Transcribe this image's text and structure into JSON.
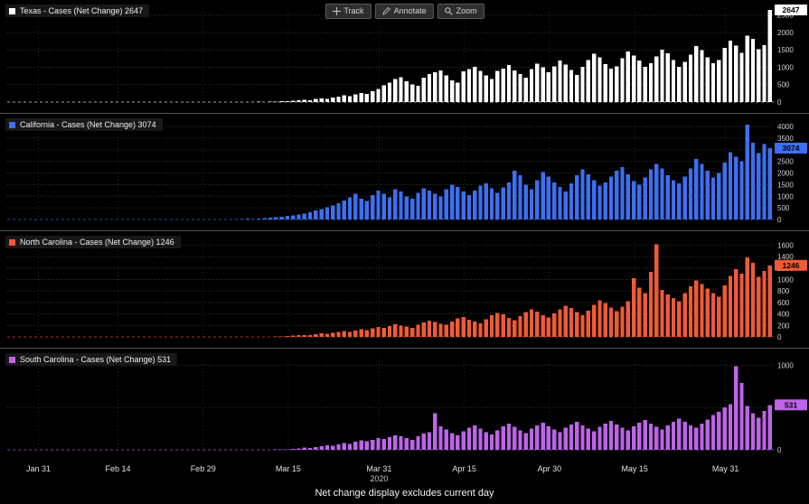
{
  "toolbar": {
    "track_label": "Track",
    "annotate_label": "Annotate",
    "zoom_label": "Zoom"
  },
  "footer": {
    "caption": "Net change display excludes current day"
  },
  "x_axis": {
    "unit": "day",
    "labels": [
      {
        "text": "Jan 31",
        "index": 5
      },
      {
        "text": "Feb 14",
        "index": 19
      },
      {
        "text": "Feb 29",
        "index": 34
      },
      {
        "text": "Mar 15",
        "index": 49
      },
      {
        "text": "Mar 31",
        "index": 65
      },
      {
        "text": "Apr 15",
        "index": 80
      },
      {
        "text": "Apr 30",
        "index": 95
      },
      {
        "text": "May 15",
        "index": 110
      },
      {
        "text": "May 31",
        "index": 126
      }
    ],
    "year": {
      "text": "2020",
      "index": 65
    }
  },
  "chart_data": [
    {
      "type": "bar",
      "name": "Texas",
      "legend": "Texas - Cases (Net Change) 2647",
      "last_value": 2647,
      "color": "#ffffff",
      "ylim": [
        0,
        2700
      ],
      "ticks": [
        0,
        500,
        1000,
        1500,
        2000,
        2500
      ],
      "values": [
        0,
        0,
        0,
        0,
        0,
        0,
        0,
        0,
        0,
        0,
        0,
        0,
        0,
        0,
        0,
        0,
        0,
        0,
        0,
        0,
        0,
        0,
        0,
        0,
        0,
        0,
        0,
        0,
        0,
        0,
        0,
        0,
        0,
        0,
        0,
        0,
        0,
        0,
        0,
        3,
        2,
        4,
        3,
        5,
        8,
        6,
        10,
        14,
        20,
        28,
        35,
        48,
        60,
        55,
        85,
        110,
        95,
        130,
        160,
        195,
        170,
        220,
        260,
        240,
        310,
        380,
        480,
        560,
        660,
        720,
        600,
        510,
        470,
        700,
        810,
        860,
        910,
        760,
        620,
        560,
        880,
        950,
        1010,
        890,
        770,
        660,
        900,
        960,
        1060,
        910,
        810,
        700,
        950,
        1100,
        1000,
        860,
        1030,
        1190,
        1080,
        920,
        780,
        1010,
        1210,
        1390,
        1290,
        1090,
        960,
        1020,
        1260,
        1450,
        1340,
        1190,
        1010,
        1110,
        1310,
        1510,
        1400,
        1210,
        1010,
        1160,
        1360,
        1610,
        1490,
        1290,
        1110,
        1210,
        1560,
        1760,
        1620,
        1410,
        1910,
        1820,
        1520,
        1640,
        2647
      ]
    },
    {
      "type": "bar",
      "name": "California",
      "legend": "California - Cases (Net Change) 3074",
      "last_value": 3074,
      "color": "#3d6ff2",
      "ylim": [
        0,
        4200
      ],
      "ticks": [
        0,
        500,
        1000,
        1500,
        2000,
        2500,
        3000,
        3500,
        4000
      ],
      "values": [
        0,
        0,
        0,
        0,
        0,
        0,
        0,
        0,
        0,
        0,
        0,
        0,
        0,
        0,
        0,
        0,
        0,
        0,
        0,
        0,
        0,
        0,
        0,
        0,
        0,
        0,
        0,
        0,
        0,
        0,
        0,
        0,
        0,
        0,
        0,
        0,
        0,
        0,
        0,
        0,
        15,
        22,
        30,
        28,
        45,
        60,
        75,
        90,
        120,
        150,
        180,
        210,
        260,
        320,
        380,
        450,
        520,
        600,
        700,
        820,
        950,
        1100,
        900,
        800,
        1050,
        1250,
        1100,
        950,
        1300,
        1200,
        1000,
        900,
        1150,
        1350,
        1250,
        1100,
        1000,
        1300,
        1500,
        1400,
        1200,
        1050,
        1250,
        1450,
        1550,
        1350,
        1150,
        1380,
        1600,
        2100,
        1900,
        1500,
        1300,
        1700,
        2050,
        1850,
        1600,
        1400,
        1200,
        1550,
        1900,
        2150,
        1950,
        1700,
        1450,
        1600,
        1850,
        2100,
        2250,
        1950,
        1650,
        1500,
        1800,
        2150,
        2400,
        2200,
        1900,
        1700,
        1550,
        1850,
        2200,
        2600,
        2400,
        2100,
        1800,
        2000,
        2450,
        2900,
        2700,
        2500,
        4090,
        3300,
        2850,
        3250,
        3074
      ]
    },
    {
      "type": "bar",
      "name": "North Carolina",
      "legend": "North Carolina - Cases (Net Change) 1246",
      "last_value": 1246,
      "color": "#ef5b36",
      "ylim": [
        0,
        1700
      ],
      "ticks": [
        0,
        200,
        400,
        600,
        800,
        1000,
        1200,
        1400,
        1600
      ],
      "values": [
        0,
        0,
        0,
        0,
        0,
        0,
        0,
        0,
        0,
        0,
        0,
        0,
        0,
        0,
        0,
        0,
        0,
        0,
        0,
        0,
        0,
        0,
        0,
        0,
        0,
        0,
        0,
        0,
        0,
        0,
        0,
        0,
        0,
        0,
        0,
        0,
        0,
        0,
        0,
        0,
        0,
        0,
        0,
        0,
        0,
        2,
        4,
        6,
        10,
        15,
        20,
        28,
        35,
        30,
        45,
        60,
        55,
        70,
        85,
        100,
        90,
        110,
        130,
        120,
        150,
        170,
        160,
        190,
        220,
        200,
        180,
        160,
        210,
        250,
        280,
        260,
        230,
        210,
        270,
        320,
        350,
        300,
        270,
        240,
        310,
        380,
        420,
        390,
        330,
        290,
        360,
        430,
        480,
        440,
        380,
        340,
        410,
        480,
        540,
        500,
        430,
        380,
        460,
        560,
        640,
        590,
        510,
        450,
        530,
        620,
        1020,
        860,
        760,
        1130,
        1610,
        820,
        740,
        680,
        620,
        760,
        880,
        980,
        920,
        840,
        760,
        700,
        900,
        1060,
        1180,
        1100,
        1386,
        1289,
        1050,
        1150,
        1246
      ]
    },
    {
      "type": "bar",
      "name": "South Carolina",
      "legend": "South Carolina - Cases (Net Change) 531",
      "last_value": 531,
      "color": "#bd64e8",
      "ylim": [
        0,
        1100
      ],
      "ticks": [
        0,
        500,
        1000
      ],
      "values": [
        0,
        0,
        0,
        0,
        0,
        0,
        0,
        0,
        0,
        0,
        0,
        0,
        0,
        0,
        0,
        0,
        0,
        0,
        0,
        0,
        0,
        0,
        0,
        0,
        0,
        0,
        0,
        0,
        0,
        0,
        0,
        0,
        0,
        0,
        0,
        0,
        0,
        0,
        0,
        0,
        0,
        0,
        0,
        0,
        0,
        0,
        0,
        3,
        5,
        8,
        12,
        18,
        25,
        22,
        30,
        45,
        55,
        48,
        65,
        80,
        70,
        95,
        110,
        100,
        120,
        140,
        130,
        150,
        170,
        160,
        140,
        120,
        160,
        190,
        210,
        430,
        280,
        240,
        200,
        170,
        220,
        260,
        290,
        250,
        210,
        180,
        230,
        280,
        310,
        270,
        230,
        200,
        250,
        290,
        320,
        280,
        240,
        210,
        260,
        300,
        330,
        290,
        250,
        220,
        270,
        310,
        340,
        300,
        260,
        230,
        280,
        320,
        350,
        310,
        270,
        240,
        290,
        330,
        370,
        330,
        290,
        260,
        310,
        360,
        410,
        450,
        500,
        540,
        990,
        790,
        520,
        430,
        380,
        460,
        531
      ]
    }
  ]
}
